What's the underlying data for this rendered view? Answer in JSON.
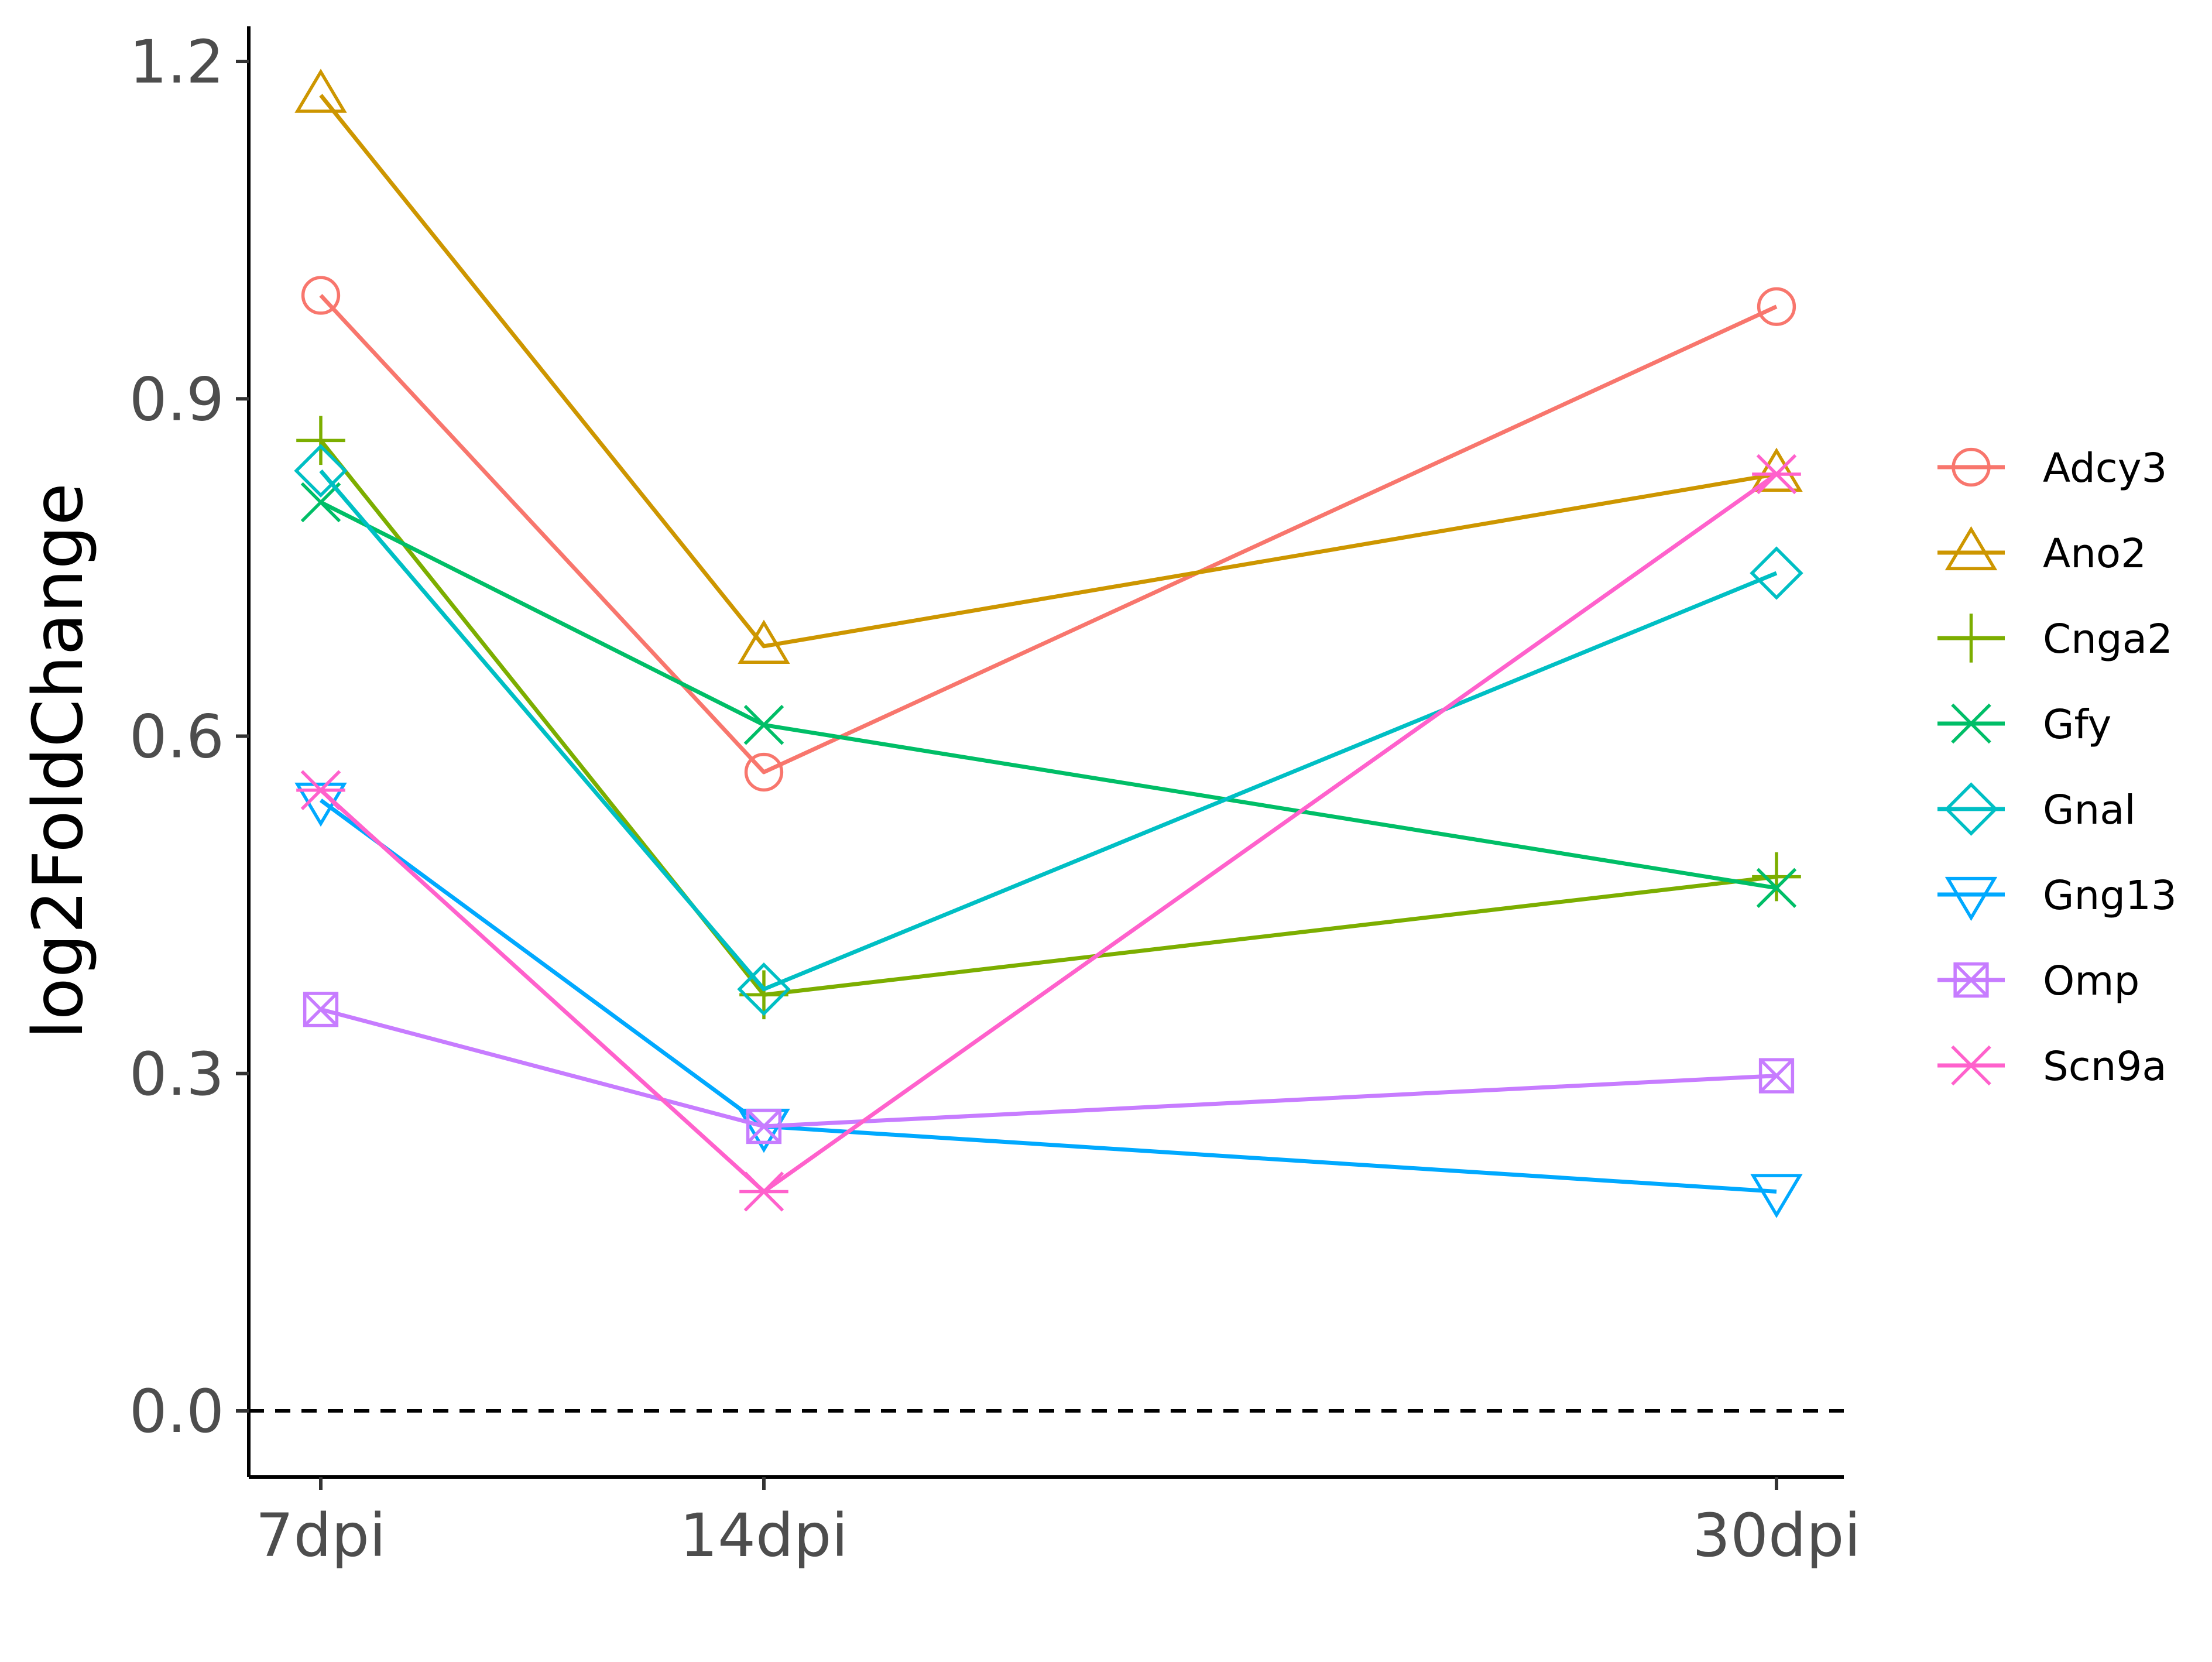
{
  "chart_data": {
    "type": "line",
    "categories": [
      "7dpi",
      "14dpi",
      "30dpi"
    ],
    "xlabel": "",
    "ylabel": "log2FoldChange",
    "ylim": [
      -0.057,
      1.23
    ],
    "yticks": [
      "0.0",
      "0.3",
      "0.6",
      "0.9",
      "1.2"
    ],
    "reference_line": {
      "y": 0.0,
      "style": "dashed"
    },
    "grid": false,
    "legend_position": "right",
    "series": [
      {
        "name": "Adcy3",
        "values": [
          0.992,
          0.568,
          0.982
        ],
        "color": "#F8766D",
        "marker": "circle"
      },
      {
        "name": "Ano2",
        "values": [
          1.17,
          0.68,
          0.833
        ],
        "color": "#CD9600",
        "marker": "triangle-up"
      },
      {
        "name": "Cnga2",
        "values": [
          0.863,
          0.37,
          0.475
        ],
        "color": "#7CAE00",
        "marker": "plus"
      },
      {
        "name": "Gfy",
        "values": [
          0.808,
          0.61,
          0.465
        ],
        "color": "#00BE67",
        "marker": "cross"
      },
      {
        "name": "Gnal",
        "values": [
          0.836,
          0.375,
          0.745
        ],
        "color": "#00BFC4",
        "marker": "diamond"
      },
      {
        "name": "Gng13",
        "values": [
          0.543,
          0.253,
          0.195
        ],
        "color": "#00A9FF",
        "marker": "triangle-down"
      },
      {
        "name": "Omp",
        "values": [
          0.357,
          0.253,
          0.298
        ],
        "color": "#C77CFF",
        "marker": "square-cross"
      },
      {
        "name": "Scn9a",
        "values": [
          0.552,
          0.195,
          0.833
        ],
        "color": "#FF61CC",
        "marker": "asterisk"
      }
    ]
  }
}
